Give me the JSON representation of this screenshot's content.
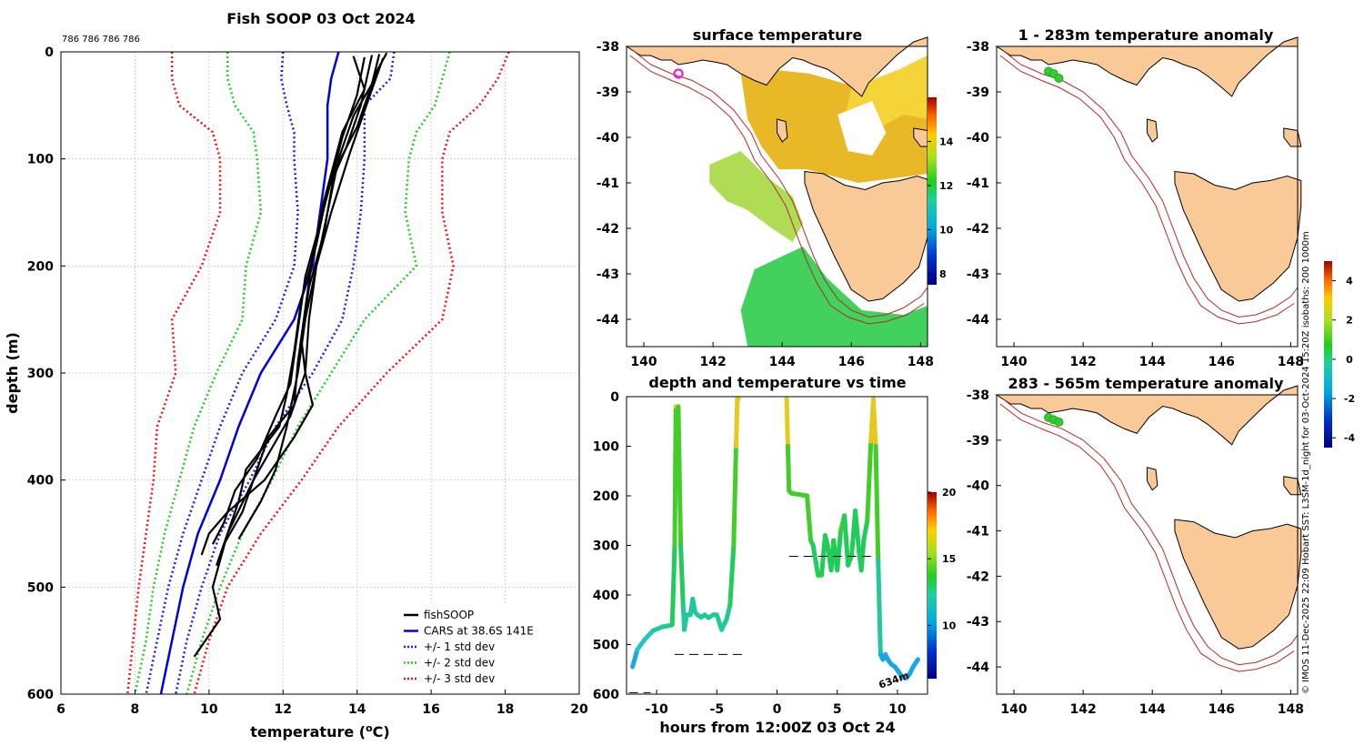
{
  "profile": {
    "title": "Fish SOOP 03 Oct 2024",
    "counts_label": "786 786 786 786",
    "xlabel_prefix": "temperature (",
    "xlabel_unit_sup": "o",
    "xlabel_suffix": "C)",
    "ylabel": "depth (m)"
  },
  "sst_map": {
    "title": "surface temperature"
  },
  "time_plot": {
    "title": "depth and temperature vs time",
    "xlabel": "hours from 12:00Z 03 Oct 24",
    "annotation": "634m"
  },
  "anom_top": {
    "title": "1 - 283m temperature anomaly"
  },
  "anom_bottom": {
    "title": "283 - 565m temperature anomaly"
  },
  "credit": "© IMOS 11-Dec-2025 22:09 Hobart SST: L3SM-1d_night for 03-Oct-2024 15:20Z isobaths: 200  1000m",
  "colors": {
    "fish": "#000000",
    "cars": "#0000dd",
    "sd1": "#1a1aee",
    "sd2": "#22cc22",
    "sd3": "#ee1111",
    "land": "#f9c997",
    "isobath": "#b22a2a"
  },
  "chart_data": [
    {
      "type": "line",
      "title": "Fish SOOP 03 Oct 2024",
      "xlabel": "temperature (oC)",
      "ylabel": "depth (m)",
      "xlim": [
        6,
        20
      ],
      "ylim": [
        600,
        0
      ],
      "xticks": [
        "6",
        "8",
        "10",
        "12",
        "14",
        "16",
        "18",
        "20"
      ],
      "yticks": [
        "0",
        "100",
        "200",
        "300",
        "400",
        "500",
        "600"
      ],
      "legend": [
        "fishSOOP",
        "CARS at 38.6S 141E",
        "+/- 1 std dev",
        "+/- 2 std dev",
        "+/- 3 std dev"
      ],
      "legend_position": "bottom-right",
      "depth": [
        0,
        25,
        50,
        75,
        100,
        150,
        200,
        250,
        300,
        350,
        400,
        450,
        500,
        550,
        600
      ],
      "series": [
        {
          "name": "CARS at 38.6S 141E",
          "style": "solid",
          "values": [
            13.5,
            13.3,
            13.2,
            13.2,
            13.2,
            13.0,
            12.8,
            12.3,
            11.4,
            10.8,
            10.3,
            9.7,
            9.3,
            9.0,
            8.7
          ]
        },
        {
          "name": "-1 std dev",
          "style": "dotted",
          "values": [
            12.0,
            11.95,
            12.1,
            12.3,
            12.3,
            12.4,
            12.3,
            11.8,
            10.9,
            10.3,
            9.8,
            9.3,
            8.9,
            8.6,
            8.3
          ]
        },
        {
          "name": "+1 std dev",
          "style": "dotted",
          "values": [
            15.0,
            14.9,
            14.2,
            14.2,
            14.2,
            14.1,
            13.9,
            13.6,
            12.8,
            11.8,
            11.1,
            10.3,
            9.8,
            9.4,
            9.1
          ]
        },
        {
          "name": "-2 std dev",
          "style": "dotted",
          "values": [
            10.5,
            10.5,
            10.7,
            11.2,
            11.3,
            11.4,
            11.0,
            10.9,
            10.2,
            9.6,
            9.2,
            8.8,
            8.5,
            8.3,
            8.0
          ]
        },
        {
          "name": "+2 std dev",
          "style": "dotted",
          "values": [
            16.5,
            16.3,
            16.1,
            15.6,
            15.4,
            15.3,
            15.6,
            14.2,
            13.3,
            12.4,
            11.7,
            10.9,
            10.3,
            9.8,
            9.4
          ]
        },
        {
          "name": "-3 std dev",
          "style": "dotted",
          "values": [
            9.0,
            9.0,
            9.2,
            10.1,
            10.3,
            10.3,
            9.8,
            9.0,
            9.1,
            8.6,
            8.5,
            8.3,
            8.1,
            7.95,
            7.8
          ]
        },
        {
          "name": "+3 std dev",
          "style": "dotted",
          "values": [
            18.1,
            17.8,
            17.3,
            16.5,
            16.3,
            16.3,
            16.6,
            16.3,
            14.8,
            13.5,
            12.5,
            11.4,
            10.5,
            10.0,
            9.6
          ]
        }
      ],
      "fish_profiles": [
        {
          "depth": [
            2,
            30,
            60,
            100,
            150,
            200,
            250,
            300,
            330,
            360,
            400,
            430,
            450,
            470
          ],
          "values": [
            14.6,
            14.4,
            13.9,
            13.5,
            13.2,
            12.9,
            12.7,
            12.6,
            12.8,
            12.3,
            11.5,
            10.5,
            10.0,
            9.8
          ]
        },
        {
          "depth": [
            5,
            40,
            80,
            120,
            160,
            210,
            260,
            310,
            340,
            380,
            410,
            440,
            460
          ],
          "values": [
            14.2,
            14.0,
            13.6,
            13.3,
            13.0,
            12.6,
            12.4,
            12.2,
            11.8,
            11.3,
            10.7,
            10.4,
            10.1
          ]
        },
        {
          "depth": [
            3,
            50,
            90,
            130,
            180,
            230,
            280,
            320,
            350,
            390,
            420,
            450,
            480
          ],
          "values": [
            14.4,
            14.1,
            13.7,
            13.2,
            12.9,
            12.5,
            12.3,
            12.1,
            11.9,
            11.0,
            10.8,
            10.5,
            10.2
          ]
        },
        {
          "depth": [
            1,
            20,
            70,
            110,
            170,
            220,
            270,
            300,
            340,
            370,
            400,
            450,
            500,
            530,
            565
          ],
          "values": [
            14.8,
            14.5,
            14.0,
            13.4,
            13.1,
            12.7,
            12.5,
            12.6,
            12.2,
            11.7,
            11.2,
            10.5,
            10.1,
            10.3,
            9.6
          ]
        },
        {
          "depth": [
            4,
            35,
            75,
            140,
            190,
            240,
            290,
            330,
            360,
            400,
            430,
            460
          ],
          "values": [
            13.9,
            14.2,
            13.6,
            13.1,
            12.8,
            12.6,
            12.4,
            12.3,
            11.6,
            11.2,
            10.9,
            10.4
          ]
        },
        {
          "depth": [
            6,
            45,
            95,
            150,
            200,
            250,
            300,
            350,
            390,
            420,
            455
          ],
          "values": [
            14.7,
            14.3,
            13.8,
            13.3,
            12.9,
            12.6,
            12.4,
            12.1,
            11.8,
            11.4,
            10.8
          ]
        }
      ]
    },
    {
      "type": "heatmap",
      "title": "surface temperature",
      "xlim": [
        139.5,
        148.2
      ],
      "ylim": [
        -44.6,
        -38
      ],
      "xticks": [
        "140",
        "142",
        "144",
        "146",
        "148"
      ],
      "yticks": [
        "-38",
        "-39",
        "-40",
        "-41",
        "-42",
        "-43",
        "-44"
      ],
      "colorbar_ticks": [
        "8",
        "10",
        "12",
        "14"
      ],
      "colorbar_range": [
        7.5,
        16
      ],
      "marker": {
        "lon": 141,
        "lat": -38.6
      }
    },
    {
      "type": "scatter",
      "title": "depth and temperature vs time",
      "xlabel": "hours from 12:00Z 03 Oct 24",
      "xlim": [
        -12.5,
        12.5
      ],
      "ylim": [
        600,
        0
      ],
      "xticks": [
        "-10",
        "-5",
        "0",
        "5",
        "10"
      ],
      "yticks": [
        "0",
        "100",
        "200",
        "300",
        "400",
        "500",
        "600"
      ],
      "colorbar_ticks": [
        "10",
        "15",
        "20"
      ],
      "colorbar_range": [
        6,
        20
      ],
      "track": [
        {
          "x": [
            -12.0,
            -11.6,
            -11.0,
            -10.3,
            -9.5,
            -9.0,
            -8.7,
            -8.5,
            -8.4,
            -8.2,
            -8.0,
            -7.8,
            -7.7,
            -7.5,
            -7.2,
            -7.0,
            -6.8,
            -6.6,
            -6.3,
            -6.0,
            -5.7,
            -5.3,
            -5.0,
            -4.6,
            -4.2,
            -3.9,
            -3.6,
            -3.4,
            -3.3,
            -3.2
          ],
          "depth": [
            545,
            510,
            490,
            472,
            464,
            462,
            460,
            300,
            20,
            20,
            300,
            420,
            470,
            440,
            440,
            408,
            435,
            440,
            445,
            440,
            446,
            440,
            440,
            470,
            450,
            420,
            300,
            100,
            5,
            5
          ]
        },
        {
          "x": [
            0.8,
            0.9,
            1.0,
            1.2,
            2.0,
            2.5,
            2.8,
            3.0,
            3.2,
            3.4,
            3.7,
            4.0,
            4.2,
            4.5,
            4.7,
            5.0,
            5.3,
            5.6,
            5.9,
            6.2,
            6.5,
            6.8,
            7.0,
            7.2,
            7.5,
            7.8,
            8.0,
            8.2,
            8.4,
            8.6,
            8.8,
            9.0,
            9.2,
            9.5,
            9.8,
            10.1,
            10.4,
            10.7,
            11.0,
            11.3,
            11.7
          ],
          "depth": [
            5,
            100,
            190,
            195,
            198,
            200,
            290,
            300,
            330,
            360,
            360,
            280,
            300,
            350,
            290,
            350,
            270,
            240,
            340,
            320,
            230,
            310,
            350,
            290,
            250,
            90,
            5,
            100,
            330,
            520,
            530,
            520,
            530,
            540,
            545,
            555,
            565,
            568,
            560,
            545,
            530
          ]
        }
      ],
      "reference_lines": [
        {
          "x": [
            -12.3,
            -10.5
          ],
          "depth": 597
        },
        {
          "x": [
            -8.5,
            -2.5
          ],
          "depth": 520
        },
        {
          "x": [
            1.0,
            8.0
          ],
          "depth": 322
        }
      ]
    },
    {
      "type": "heatmap",
      "title": "1 - 283m temperature anomaly",
      "xlim": [
        139.5,
        148.2
      ],
      "ylim": [
        -44.6,
        -38
      ],
      "xticks": [
        "140",
        "142",
        "144",
        "146",
        "148"
      ],
      "yticks": [
        "-38",
        "-39",
        "-40",
        "-41",
        "-42",
        "-43",
        "-44"
      ],
      "points_lon": [
        141.0,
        141.15,
        141.3
      ],
      "points_lat": [
        -38.55,
        -38.6,
        -38.7
      ],
      "anomaly_value": 1.0
    },
    {
      "type": "heatmap",
      "title": "283 - 565m temperature anomaly",
      "xlim": [
        139.5,
        148.2
      ],
      "ylim": [
        -44.6,
        -38
      ],
      "xticks": [
        "140",
        "142",
        "144",
        "146",
        "148"
      ],
      "yticks": [
        "-38",
        "-39",
        "-40",
        "-41",
        "-42",
        "-43",
        "-44"
      ],
      "points_lon": [
        141.0,
        141.15,
        141.3
      ],
      "points_lat": [
        -38.5,
        -38.55,
        -38.6
      ],
      "anomaly_value": 1.0,
      "colorbar_ticks": [
        "-4",
        "-2",
        "0",
        "2",
        "4"
      ],
      "colorbar_range": [
        -4.5,
        5
      ]
    }
  ]
}
